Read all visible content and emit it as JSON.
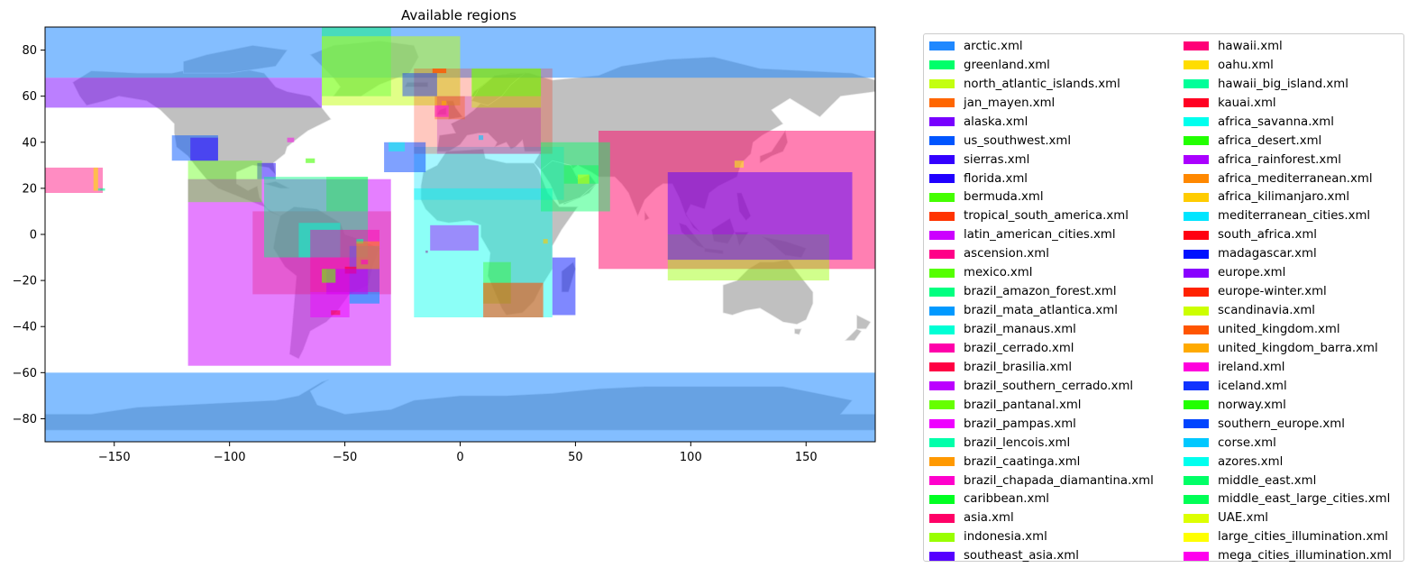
{
  "title": "Available regions",
  "axes": {
    "xlim": [
      -180,
      180
    ],
    "ylim": [
      -90,
      90
    ],
    "xticks": [
      -150,
      -100,
      -50,
      0,
      50,
      100,
      150
    ],
    "yticks": [
      -80,
      -60,
      -40,
      -20,
      0,
      20,
      40,
      60,
      80
    ]
  },
  "colors": {
    "land": "#c0c0c0",
    "ocean": "#ffffff",
    "polar_overlay": "#1e88ff"
  },
  "regions": [
    {
      "name": "arctic.xml",
      "color": "#1f88ff",
      "lon": [
        -180,
        180
      ],
      "lat": [
        68,
        90
      ],
      "alpha": 0.55
    },
    {
      "name": "greenland.xml",
      "color": "#00ff6a",
      "lon": [
        -60,
        -30
      ],
      "lat": [
        60,
        90
      ],
      "alpha": 0.45
    },
    {
      "name": "north_atlantic_islands.xml",
      "color": "#c3ff10",
      "lon": [
        -60,
        0
      ],
      "lat": [
        56,
        86
      ],
      "alpha": 0.5
    },
    {
      "name": "jan_mayen.xml",
      "color": "#ff6600",
      "lon": [
        -12,
        -6
      ],
      "lat": [
        70,
        72
      ],
      "alpha": 0.8
    },
    {
      "name": "alaska.xml",
      "color": "#7700ff",
      "lon": [
        -180,
        -60
      ],
      "lat": [
        55,
        68
      ],
      "alpha": 0.5
    },
    {
      "name": "us_southwest.xml",
      "color": "#0055ff",
      "lon": [
        -125,
        -105
      ],
      "lat": [
        32,
        43
      ],
      "alpha": 0.5
    },
    {
      "name": "sierras.xml",
      "color": "#3300ff",
      "lon": [
        -117,
        -105
      ],
      "lat": [
        32,
        42
      ],
      "alpha": 0.5
    },
    {
      "name": "florida.xml",
      "color": "#2000ff",
      "lon": [
        -88,
        -80
      ],
      "lat": [
        24,
        31
      ],
      "alpha": 0.5
    },
    {
      "name": "bermuda.xml",
      "color": "#44ff00",
      "lon": [
        -67,
        -63
      ],
      "lat": [
        31,
        33
      ],
      "alpha": 0.6
    },
    {
      "name": "tropical_south_america.xml",
      "color": "#ff3300",
      "lon": [
        -90,
        -30
      ],
      "lat": [
        -26,
        10
      ],
      "alpha": 0.35
    },
    {
      "name": "latin_american_cities.xml",
      "color": "#cc00ff",
      "lon": [
        -118,
        -30
      ],
      "lat": [
        -57,
        24
      ],
      "alpha": 0.5
    },
    {
      "name": "ascension.xml",
      "color": "#ff0088",
      "lon": [
        -15,
        -14
      ],
      "lat": [
        -8,
        -7
      ],
      "alpha": 0.8
    },
    {
      "name": "mexico.xml",
      "color": "#55ff00",
      "lon": [
        -118,
        -86
      ],
      "lat": [
        14,
        32
      ],
      "alpha": 0.4
    },
    {
      "name": "brazil_amazon_forest.xml",
      "color": "#00ff80",
      "lon": [
        -85,
        -40
      ],
      "lat": [
        -10,
        25
      ],
      "alpha": 0.45
    },
    {
      "name": "brazil_mata_atlantica.xml",
      "color": "#0099ff",
      "lon": [
        -48,
        -35
      ],
      "lat": [
        -30,
        -5
      ],
      "alpha": 0.6
    },
    {
      "name": "brazil_manaus.xml",
      "color": "#00ffd5",
      "lon": [
        -70,
        -52
      ],
      "lat": [
        -10,
        5
      ],
      "alpha": 0.5
    },
    {
      "name": "brazil_cerrado.xml",
      "color": "#ff00aa",
      "lon": [
        -65,
        -35
      ],
      "lat": [
        -25,
        2
      ],
      "alpha": 0.45
    },
    {
      "name": "brazil_brasilia.xml",
      "color": "#ff0044",
      "lon": [
        -50,
        -45
      ],
      "lat": [
        -17,
        -14
      ],
      "alpha": 0.7
    },
    {
      "name": "brazil_southern_cerrado.xml",
      "color": "#bb00ff",
      "lon": [
        -58,
        -40
      ],
      "lat": [
        -26,
        -15
      ],
      "alpha": 0.5
    },
    {
      "name": "brazil_pantanal.xml",
      "color": "#66ff00",
      "lon": [
        -60,
        -54
      ],
      "lat": [
        -21,
        -15
      ],
      "alpha": 0.6
    },
    {
      "name": "brazil_pampas.xml",
      "color": "#ee00ff",
      "lon": [
        -65,
        -48
      ],
      "lat": [
        -36,
        -25
      ],
      "alpha": 0.5
    },
    {
      "name": "brazil_lencois.xml",
      "color": "#00ffaa",
      "lon": [
        -45,
        -42
      ],
      "lat": [
        -4,
        -2
      ],
      "alpha": 0.6
    },
    {
      "name": "brazil_caatinga.xml",
      "color": "#ff9900",
      "lon": [
        -45,
        -35
      ],
      "lat": [
        -15,
        -3
      ],
      "alpha": 0.5
    },
    {
      "name": "brazil_chapada_diamantina.xml",
      "color": "#ff00cc",
      "lon": [
        -43,
        -40
      ],
      "lat": [
        -13,
        -11
      ],
      "alpha": 0.6
    },
    {
      "name": "caribbean.xml",
      "color": "#00ff22",
      "lon": [
        -58,
        -40
      ],
      "lat": [
        10,
        25
      ],
      "alpha": 0.3
    },
    {
      "name": "asia.xml",
      "color": "#ff0066",
      "lon": [
        60,
        180
      ],
      "lat": [
        -15,
        45
      ],
      "alpha": 0.5
    },
    {
      "name": "indonesia.xml",
      "color": "#99ff00",
      "lon": [
        90,
        160
      ],
      "lat": [
        -20,
        0
      ],
      "alpha": 0.45
    },
    {
      "name": "southeast_asia.xml",
      "color": "#5500ff",
      "lon": [
        90,
        170
      ],
      "lat": [
        -11,
        27
      ],
      "alpha": 0.5
    },
    {
      "name": "hawaii.xml",
      "color": "#ff0077",
      "lon": [
        -180,
        -155
      ],
      "lat": [
        18,
        29
      ],
      "alpha": 0.45
    },
    {
      "name": "oahu.xml",
      "color": "#ffdd00",
      "lon": [
        -159,
        -157
      ],
      "lat": [
        19,
        29
      ],
      "alpha": 0.6
    },
    {
      "name": "hawaii_big_island.xml",
      "color": "#00ff99",
      "lon": [
        -157,
        -154
      ],
      "lat": [
        19,
        20
      ],
      "alpha": 0.6
    },
    {
      "name": "kauai.xml",
      "color": "#ff0022",
      "lon": [
        -56,
        -52
      ],
      "lat": [
        -35,
        -33
      ],
      "alpha": 0.5
    },
    {
      "name": "africa_savanna.xml",
      "color": "#00ffee",
      "lon": [
        -20,
        40
      ],
      "lat": [
        -36,
        20
      ],
      "alpha": 0.45
    },
    {
      "name": "africa_desert.xml",
      "color": "#22ff00",
      "lon": [
        10,
        22
      ],
      "lat": [
        -30,
        -12
      ],
      "alpha": 0.35
    },
    {
      "name": "africa_rainforest.xml",
      "color": "#aa00ff",
      "lon": [
        -13,
        8
      ],
      "lat": [
        -7,
        4
      ],
      "alpha": 0.45
    },
    {
      "name": "africa_mediterranean.xml",
      "color": "#ff8800",
      "lon": [
        10,
        36
      ],
      "lat": [
        -36,
        -21
      ],
      "alpha": 0.45
    },
    {
      "name": "africa_kilimanjaro.xml",
      "color": "#ffcc00",
      "lon": [
        36,
        38
      ],
      "lat": [
        -4,
        -2
      ],
      "alpha": 0.6
    },
    {
      "name": "mediterranean_cities.xml",
      "color": "#00e5ff",
      "lon": [
        -20,
        45
      ],
      "lat": [
        15,
        38
      ],
      "alpha": 0.35
    },
    {
      "name": "south_africa.xml",
      "color": "#ff0011",
      "lon": [
        10,
        36
      ],
      "lat": [
        -36,
        -21
      ],
      "alpha": 0.25
    },
    {
      "name": "madagascar.xml",
      "color": "#0011ff",
      "lon": [
        40,
        50
      ],
      "lat": [
        -35,
        -10
      ],
      "alpha": 0.5
    },
    {
      "name": "europe.xml",
      "color": "#8800ff",
      "lon": [
        -10,
        35
      ],
      "lat": [
        35,
        60
      ],
      "alpha": 0.25
    },
    {
      "name": "europe-winter.xml",
      "color": "#ff2200",
      "lon": [
        -20,
        40
      ],
      "lat": [
        35,
        72
      ],
      "alpha": 0.25
    },
    {
      "name": "scandinavia.xml",
      "color": "#ccff00",
      "lon": [
        5,
        35
      ],
      "lat": [
        55,
        72
      ],
      "alpha": 0.45
    },
    {
      "name": "united_kingdom.xml",
      "color": "#ff5500",
      "lon": [
        -11,
        2
      ],
      "lat": [
        50,
        60
      ],
      "alpha": 0.35
    },
    {
      "name": "united_kingdom_barra.xml",
      "color": "#ffaa00",
      "lon": [
        -8,
        -6
      ],
      "lat": [
        56,
        58
      ],
      "alpha": 0.6
    },
    {
      "name": "ireland.xml",
      "color": "#ff00dd",
      "lon": [
        -11,
        -5
      ],
      "lat": [
        51,
        56
      ],
      "alpha": 0.5
    },
    {
      "name": "iceland.xml",
      "color": "#1133ff",
      "lon": [
        -25,
        -10
      ],
      "lat": [
        60,
        70
      ],
      "alpha": 0.45
    },
    {
      "name": "norway.xml",
      "color": "#22ff00",
      "lon": [
        5,
        35
      ],
      "lat": [
        60,
        72
      ],
      "alpha": 0.35
    },
    {
      "name": "southern_europe.xml",
      "color": "#0044ff",
      "lon": [
        -33,
        -15
      ],
      "lat": [
        27,
        40
      ],
      "alpha": 0.5
    },
    {
      "name": "corse.xml",
      "color": "#00c8ff",
      "lon": [
        8,
        10
      ],
      "lat": [
        41,
        43
      ],
      "alpha": 0.6
    },
    {
      "name": "azores.xml",
      "color": "#00ffee",
      "lon": [
        -31,
        -24
      ],
      "lat": [
        36,
        40
      ],
      "alpha": 0.5
    },
    {
      "name": "middle_east.xml",
      "color": "#00ff66",
      "lon": [
        35,
        65
      ],
      "lat": [
        10,
        40
      ],
      "alpha": 0.45
    },
    {
      "name": "middle_east_large_cities.xml",
      "color": "#00ff55",
      "lon": [
        45,
        60
      ],
      "lat": [
        22,
        30
      ],
      "alpha": 0.45
    },
    {
      "name": "UAE.xml",
      "color": "#ddff00",
      "lon": [
        51,
        56
      ],
      "lat": [
        22,
        26
      ],
      "alpha": 0.5
    },
    {
      "name": "large_cities_illumination.xml",
      "color": "#ffff00",
      "lon": [
        119,
        123
      ],
      "lat": [
        29,
        32
      ],
      "alpha": 0.5
    },
    {
      "name": "mega_cities_illumination.xml",
      "color": "#ff00ee",
      "lon": [
        -75,
        -72
      ],
      "lat": [
        40,
        42
      ],
      "alpha": 0.5
    }
  ]
}
